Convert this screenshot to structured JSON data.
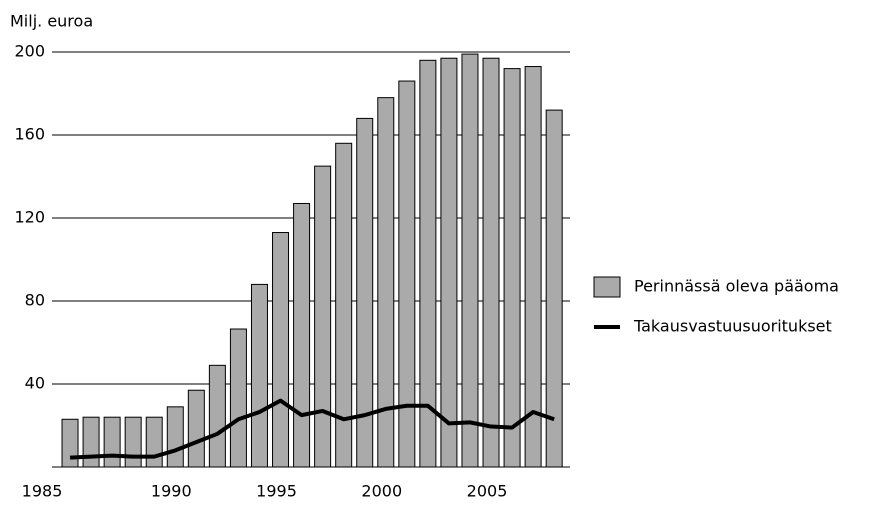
{
  "chart_data": {
    "type": "bar",
    "y_label": "Milj. euroa",
    "categories": [
      "1985",
      null,
      null,
      null,
      null,
      "1990",
      null,
      null,
      null,
      null,
      "1995",
      null,
      null,
      null,
      null,
      "2000",
      null,
      null,
      null,
      null,
      "2005",
      null,
      null,
      null
    ],
    "series": [
      {
        "name": "Perinnässä oleva pääoma",
        "type": "bar",
        "color": "#aaaaaa",
        "values": [
          23,
          24,
          24,
          24,
          24,
          29,
          37,
          49,
          66.5,
          88,
          113,
          127,
          145,
          156,
          168,
          178,
          186,
          196,
          197,
          199,
          197,
          192,
          193,
          172
        ]
      },
      {
        "name": "Takausvastuusuoritukset",
        "type": "line",
        "color": "#000000",
        "values": [
          4.5,
          5,
          5.5,
          5,
          5,
          8,
          12,
          16,
          23,
          26.5,
          32,
          25,
          27,
          23,
          25,
          28,
          29.5,
          29.5,
          21,
          21.5,
          19.5,
          19,
          26.5,
          23
        ]
      }
    ],
    "ylim": [
      0,
      200
    ],
    "yticks": [
      40,
      80,
      120,
      160,
      200
    ],
    "grid": true,
    "legend": "right"
  }
}
